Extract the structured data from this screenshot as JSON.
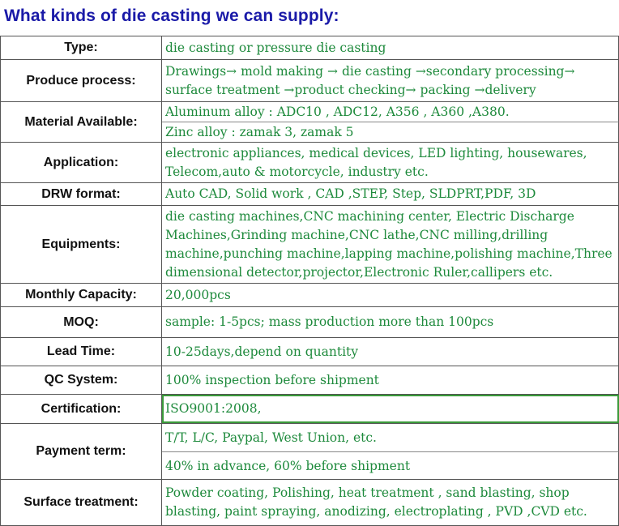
{
  "title": "What kinds of die casting we can supply:",
  "rows": {
    "type": {
      "label": "Type:",
      "lines": [
        "die casting or pressure die casting"
      ]
    },
    "process": {
      "label": "Produce process:",
      "lines": [
        "Drawings→ mold making → die casting →secondary processing→",
        "surface treatment →product checking→ packing →delivery"
      ]
    },
    "material": {
      "label": "Material Available:",
      "lines": [
        "Aluminum alloy : ADC10 , ADC12, A356 , A360 ,A380.",
        "Zinc alloy : zamak 3, zamak 5"
      ]
    },
    "application": {
      "label": "Application:",
      "lines": [
        "electronic appliances, medical devices, LED lighting, housewares,",
        "Telecom,auto & motorcycle, industry etc."
      ]
    },
    "drw": {
      "label": "DRW format:",
      "lines": [
        "Auto CAD, Solid work , CAD ,STEP, Step, SLDPRT,PDF, 3D"
      ]
    },
    "equipments": {
      "label": "Equipments:",
      "lines": [
        "die casting machines,CNC machining center, Electric Discharge",
        "Machines,Grinding machine,CNC lathe,CNC milling,drilling",
        "machine,punching machine,lapping machine,polishing machine,Three",
        "dimensional detector,projector,Electronic Ruler,callipers etc."
      ]
    },
    "capacity": {
      "label": "Monthly Capacity:",
      "lines": [
        "20,000pcs"
      ]
    },
    "moq": {
      "label": "MOQ:",
      "lines": [
        "sample: 1-5pcs; mass production more than 100pcs"
      ]
    },
    "lead": {
      "label": "Lead Time:",
      "lines": [
        "10-25days,depend on quantity"
      ]
    },
    "qc": {
      "label": "QC System:",
      "lines": [
        "100% inspection  before shipment"
      ]
    },
    "cert": {
      "label": "Certification:",
      "lines": [
        "ISO9001:2008,"
      ]
    },
    "payment": {
      "label": "Payment term:",
      "lines": [
        "T/T, L/C, Paypal,  West Union, etc.",
        "40% in advance, 60% before shipment"
      ]
    },
    "surface": {
      "label": "Surface treatment:",
      "lines": [
        "Powder coating, Polishing, heat treatment , sand blasting,   shop",
        "blasting, paint spraying, anodizing, electroplating , PVD ,CVD etc."
      ]
    }
  }
}
